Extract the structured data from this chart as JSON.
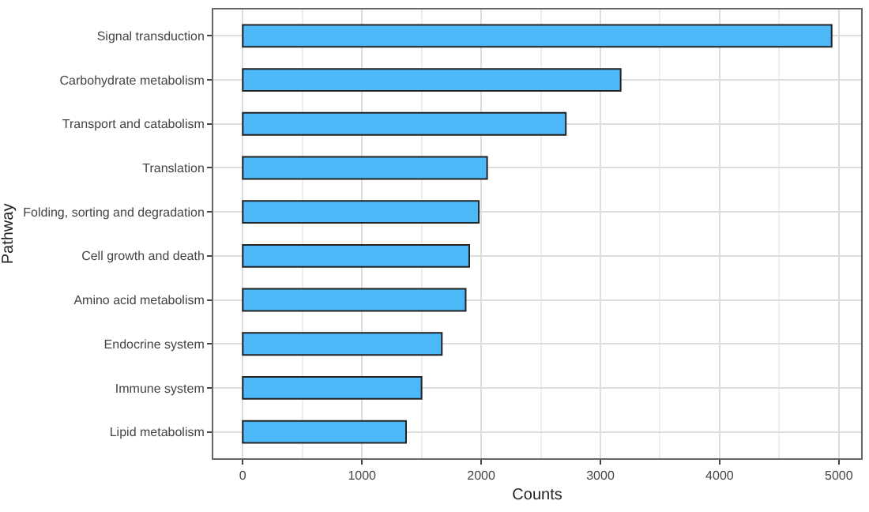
{
  "chart_data": {
    "type": "bar",
    "orientation": "horizontal",
    "xlabel": "Counts",
    "ylabel": "Pathway",
    "categories": [
      "Signal transduction",
      "Carbohydrate metabolism",
      "Transport and catabolism",
      "Translation",
      "Folding, sorting and degradation",
      "Cell growth and death",
      "Amino acid metabolism",
      "Endocrine system",
      "Immune system",
      "Lipid metabolism"
    ],
    "values": [
      4940,
      3170,
      2710,
      2050,
      1980,
      1900,
      1870,
      1670,
      1500,
      1370
    ],
    "color": "#4db8f8",
    "xlim": [
      -247,
      5187
    ],
    "xticks": [
      0,
      1000,
      2000,
      3000,
      4000,
      5000
    ],
    "grid": true
  }
}
